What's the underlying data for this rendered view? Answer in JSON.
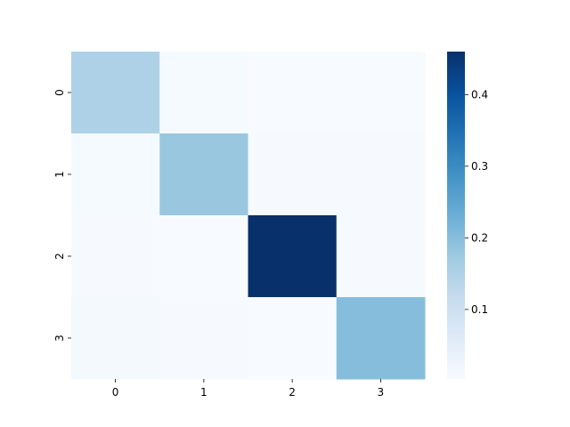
{
  "chart_data": {
    "type": "heatmap",
    "title": "",
    "xlabel": "",
    "ylabel": "",
    "x_categories": [
      "0",
      "1",
      "2",
      "3"
    ],
    "y_categories": [
      "0",
      "1",
      "2",
      "3"
    ],
    "values": [
      [
        0.15,
        0.008,
        0.004,
        0.004
      ],
      [
        0.007,
        0.18,
        0.005,
        0.006
      ],
      [
        0.005,
        0.004,
        0.46,
        0.006
      ],
      [
        0.009,
        0.005,
        0.004,
        0.2
      ]
    ],
    "colorbar": {
      "colormap": "Blues",
      "range": [
        0.003,
        0.46
      ],
      "ticks": [
        0.1,
        0.2,
        0.3,
        0.4
      ],
      "tick_labels": [
        "0.1",
        "0.2",
        "0.3",
        "0.4"
      ]
    }
  }
}
